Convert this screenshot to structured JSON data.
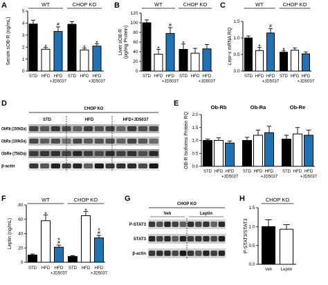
{
  "chart_data": [
    {
      "panel": "A",
      "type": "bar",
      "ylabel": [
        [
          {
            "text": "Serum sOB-R (ng/mL)"
          }
        ]
      ],
      "ylim": [
        0,
        5
      ],
      "yticks": [
        0,
        1,
        2,
        3,
        4,
        5
      ],
      "ytick_labels": [
        "0",
        "1",
        "2",
        "3",
        "4",
        "5"
      ],
      "groups": [
        {
          "label": "WT",
          "bars": [
            0,
            2
          ],
          "bracket": true
        },
        {
          "label": "CHOP KO",
          "bars": [
            3,
            5
          ],
          "bracket": true
        }
      ],
      "xtick_labels": [
        [
          "STD"
        ],
        [
          "HFD"
        ],
        [
          "HFD",
          "+JD5037"
        ],
        [
          "STD"
        ],
        [
          "HFD"
        ],
        [
          "HFD",
          "+JD5037"
        ]
      ],
      "values": [
        3.92,
        1.82,
        3.3,
        3.9,
        1.76,
        2.08
      ],
      "errors": [
        0.32,
        0.15,
        0.38,
        0.22,
        0.15,
        0.2
      ],
      "colors": [
        "#000000",
        "#ffffff",
        "#1f72b4",
        "#000000",
        "#ffffff",
        "#1f72b4"
      ],
      "annotations": [
        {
          "bar": 1,
          "lines": [
            "*"
          ]
        },
        {
          "bar": 2,
          "lines": [
            "#"
          ]
        },
        {
          "bar": 4,
          "lines": [
            "*"
          ]
        },
        {
          "bar": 5,
          "lines": [
            "*"
          ]
        }
      ]
    },
    {
      "panel": "B",
      "type": "bar",
      "ylabel": [
        [
          {
            "text": "Liver sOB-R"
          }
        ],
        [
          {
            "text": "(pg/mg Protein)"
          }
        ]
      ],
      "ylim": [
        0,
        120
      ],
      "yticks": [
        0,
        20,
        40,
        60,
        80,
        100,
        120
      ],
      "ytick_labels": [
        "0",
        "20",
        "40",
        "60",
        "80",
        "100",
        "120"
      ],
      "groups": [
        {
          "label": "WT",
          "bars": [
            0,
            2
          ],
          "bracket": true
        },
        {
          "label": "CHOP KO",
          "bars": [
            3,
            5
          ],
          "bracket": true
        }
      ],
      "xtick_labels": [
        [
          "STD"
        ],
        [
          "HFD"
        ],
        [
          "HFD",
          "+JD5037"
        ],
        [
          "STD"
        ],
        [
          "HFD"
        ],
        [
          "HFD",
          "+JD5037"
        ]
      ],
      "values": [
        100,
        35,
        78,
        45,
        37,
        46
      ],
      "errors": [
        6,
        10,
        12,
        11,
        10,
        9
      ],
      "colors": [
        "#000000",
        "#ffffff",
        "#1f72b4",
        "#000000",
        "#ffffff",
        "#1f72b4"
      ],
      "annotations": [
        {
          "bar": 1,
          "lines": [
            "*"
          ]
        },
        {
          "bar": 2,
          "lines": [
            "#"
          ]
        },
        {
          "bar": 3,
          "lines": [
            "*"
          ]
        }
      ]
    },
    {
      "panel": "C",
      "type": "bar",
      "ylabel": [
        [
          {
            "text": "Lepr-s",
            "italic": true
          },
          {
            "text": " mRNA RQ"
          }
        ]
      ],
      "ylim": [
        0,
        1.5
      ],
      "yticks": [
        0,
        0.5,
        1.0,
        1.5
      ],
      "ytick_labels": [
        "0.0",
        "0.5",
        "1.0",
        "1.5"
      ],
      "groups": [
        {
          "label": "WT",
          "bars": [
            0,
            2
          ],
          "bracket": true
        },
        {
          "label": "CHOP KO",
          "bars": [
            3,
            5
          ],
          "bracket": true
        }
      ],
      "xtick_labels": [
        [
          "STD"
        ],
        [
          "HFD"
        ],
        [
          "HFD",
          "+JD5037"
        ],
        [
          "STD"
        ],
        [
          "HFD"
        ],
        [
          "HFD",
          "+JD5037"
        ]
      ],
      "values": [
        1.0,
        0.62,
        1.15,
        0.57,
        0.63,
        0.52
      ],
      "errors": [
        0.06,
        0.1,
        0.13,
        0.05,
        0.07,
        0.06
      ],
      "colors": [
        "#000000",
        "#ffffff",
        "#1f72b4",
        "#000000",
        "#ffffff",
        "#1f72b4"
      ],
      "annotations": [
        {
          "bar": 1,
          "lines": [
            "*"
          ]
        },
        {
          "bar": 2,
          "lines": [
            "#"
          ]
        },
        {
          "bar": 3,
          "lines": [
            "*"
          ]
        }
      ]
    },
    {
      "panel": "E",
      "type": "bar",
      "ylabel": [
        [
          {
            "text": "OB-R Isoforms Protein RQ"
          }
        ]
      ],
      "ylim": [
        0,
        2
      ],
      "yticks": [
        0,
        0.5,
        1.0,
        1.5,
        2.0
      ],
      "ytick_labels": [
        "0.0",
        "0.5",
        "1.0",
        "1.5",
        "2.0"
      ],
      "groups": [
        {
          "label": "Ob-Rb",
          "bars": [
            0,
            2
          ],
          "bracket": false
        },
        {
          "label": "Ob-Ra",
          "bars": [
            3,
            5
          ],
          "bracket": false
        },
        {
          "label": "Ob-Re",
          "bars": [
            6,
            8
          ],
          "bracket": false
        }
      ],
      "xtick_labels": [
        [
          "STD"
        ],
        [
          "HFD"
        ],
        [
          "HFD",
          "+JD5037"
        ],
        [
          "STD"
        ],
        [
          "HFD"
        ],
        [
          "HFD",
          "+JD5037"
        ],
        [
          "STD"
        ],
        [
          "HFD"
        ],
        [
          "HFD",
          "+JD5037"
        ]
      ],
      "values": [
        1.0,
        1.0,
        0.9,
        1.0,
        1.2,
        1.3,
        1.05,
        1.25,
        1.2
      ],
      "errors": [
        0.05,
        0.1,
        0.08,
        0.12,
        0.2,
        0.25,
        0.15,
        0.25,
        0.2
      ],
      "colors": [
        "#000000",
        "#ffffff",
        "#1f72b4",
        "#000000",
        "#ffffff",
        "#1f72b4",
        "#000000",
        "#ffffff",
        "#1f72b4"
      ],
      "annotations": []
    },
    {
      "panel": "F",
      "type": "bar",
      "ylabel": [
        [
          {
            "text": "Leptin (ng/mL)"
          }
        ]
      ],
      "ylim": [
        0,
        80
      ],
      "yticks": [
        0,
        20,
        40,
        60,
        80
      ],
      "ytick_labels": [
        "0",
        "20",
        "40",
        "60",
        "80"
      ],
      "groups": [
        {
          "label": "WT",
          "bars": [
            0,
            2
          ],
          "bracket": true
        },
        {
          "label": "CHOP KO",
          "bars": [
            3,
            5
          ],
          "bracket": true
        }
      ],
      "xtick_labels": [
        [
          "STD"
        ],
        [
          "HFD"
        ],
        [
          "HFD",
          "+JD5037"
        ],
        [
          "STD"
        ],
        [
          "HFD"
        ],
        [
          "HFD",
          "+JD5037"
        ]
      ],
      "values": [
        10,
        58,
        21,
        8,
        65,
        34
      ],
      "errors": [
        1.5,
        8,
        3,
        1.2,
        6,
        3.5
      ],
      "colors": [
        "#000000",
        "#ffffff",
        "#1f72b4",
        "#000000",
        "#ffffff",
        "#1f72b4"
      ],
      "annotations": [
        {
          "bar": 1,
          "lines": [
            "*"
          ]
        },
        {
          "bar": 2,
          "lines": [
            "*",
            "#"
          ]
        },
        {
          "bar": 4,
          "lines": [
            "*"
          ]
        },
        {
          "bar": 5,
          "lines": [
            "*",
            "#"
          ]
        }
      ]
    },
    {
      "panel": "H",
      "type": "bar",
      "ylabel": [
        [
          {
            "text": "P-STAT3/STAT3"
          }
        ]
      ],
      "ylim": [
        0,
        1.5
      ],
      "yticks": [
        0,
        0.5,
        1.0,
        1.5
      ],
      "ytick_labels": [
        "0.0",
        "0.5",
        "1.0",
        "1.5"
      ],
      "groups": [
        {
          "label": "CHOP KO",
          "bars": [
            0,
            1
          ],
          "bracket": true
        }
      ],
      "xtick_labels": [
        [
          "Veh"
        ],
        [
          "Leptin"
        ]
      ],
      "values": [
        1.0,
        0.93
      ],
      "errors": [
        0.18,
        0.12
      ],
      "colors": [
        "#000000",
        "#ffffff"
      ],
      "annotations": []
    }
  ],
  "blots": [
    {
      "panel": "D",
      "header": "CHOP KO",
      "columns": [
        "STD",
        "HFD",
        "HFD+JD5037"
      ],
      "rows": [
        "ObRb (150kDa)",
        "ObRa (100kDa)",
        "ObRe (75kDa)",
        "β-actin"
      ]
    },
    {
      "panel": "G",
      "header": "CHOP KO",
      "columns": [
        "Veh",
        "Leptin"
      ],
      "rows": [
        "P-STAT3",
        "STAT3",
        "β-actin"
      ]
    }
  ]
}
